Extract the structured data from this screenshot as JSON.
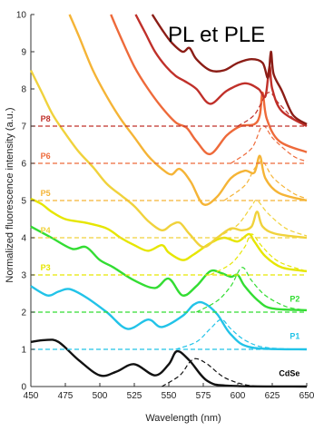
{
  "chart_data": {
    "type": "line",
    "title": "PL et PLE",
    "xlabel": "Wavelength (nm)",
    "ylabel": "Normalized fluorescence intensity (a.u.)",
    "xlim": [
      450,
      650
    ],
    "ylim": [
      0,
      10
    ],
    "xticks": [
      "450",
      "475",
      "500",
      "525",
      "550",
      "575",
      "600",
      "625",
      "650"
    ],
    "yticks": [
      "0",
      "1",
      "2",
      "3",
      "4",
      "5",
      "6",
      "7",
      "8",
      "9",
      "10"
    ],
    "grid": false,
    "legend": "none",
    "colors": {
      "CdSe": "#111111",
      "P1": "#22c3e8",
      "P2": "#33dd33",
      "P3": "#e6e600",
      "P4": "#f0d23c",
      "P5": "#f5b436",
      "P6": "#ee6a3a",
      "P8": "#c0302a",
      "P8dark": "#8b1d16"
    },
    "series": [
      {
        "name": "CdSe",
        "baseline": 0,
        "color": "#111111",
        "ple": [
          [
            450,
            1.2
          ],
          [
            460,
            1.25
          ],
          [
            470,
            1.2
          ],
          [
            485,
            0.7
          ],
          [
            500,
            0.3
          ],
          [
            512,
            0.4
          ],
          [
            525,
            0.6
          ],
          [
            540,
            0.3
          ],
          [
            550,
            0.6
          ],
          [
            556,
            0.95
          ],
          [
            565,
            0.7
          ],
          [
            578,
            0.15
          ],
          [
            595,
            0.02
          ],
          [
            650,
            0
          ]
        ],
        "pl": [
          [
            545,
            0
          ],
          [
            558,
            0.3
          ],
          [
            565,
            0.65
          ],
          [
            570,
            0.75
          ],
          [
            578,
            0.6
          ],
          [
            590,
            0.25
          ],
          [
            605,
            0.05
          ],
          [
            620,
            0
          ]
        ]
      },
      {
        "name": "P1",
        "baseline": 1,
        "color": "#22c3e8",
        "ple": [
          [
            450,
            2.7
          ],
          [
            462,
            2.45
          ],
          [
            470,
            2.55
          ],
          [
            478,
            2.62
          ],
          [
            490,
            2.4
          ],
          [
            505,
            2.0
          ],
          [
            520,
            1.55
          ],
          [
            535,
            1.8
          ],
          [
            545,
            1.6
          ],
          [
            560,
            1.9
          ],
          [
            568,
            2.2
          ],
          [
            575,
            2.25
          ],
          [
            585,
            1.95
          ],
          [
            595,
            1.4
          ],
          [
            610,
            1.05
          ],
          [
            650,
            1.0
          ]
        ],
        "pl": [
          [
            555,
            1.0
          ],
          [
            570,
            1.2
          ],
          [
            580,
            1.55
          ],
          [
            588,
            1.8
          ],
          [
            595,
            1.55
          ],
          [
            605,
            1.25
          ],
          [
            620,
            1.05
          ],
          [
            650,
            1.0
          ]
        ]
      },
      {
        "name": "P2",
        "baseline": 2,
        "color": "#33dd33",
        "ple": [
          [
            450,
            4.3
          ],
          [
            465,
            4.0
          ],
          [
            480,
            3.7
          ],
          [
            490,
            3.75
          ],
          [
            500,
            3.4
          ],
          [
            510,
            3.2
          ],
          [
            525,
            2.85
          ],
          [
            540,
            2.65
          ],
          [
            550,
            2.9
          ],
          [
            560,
            2.45
          ],
          [
            570,
            2.7
          ],
          [
            580,
            3.1
          ],
          [
            588,
            3.05
          ],
          [
            595,
            2.95
          ],
          [
            600,
            3.0
          ],
          [
            605,
            2.7
          ],
          [
            615,
            2.3
          ],
          [
            625,
            2.1
          ],
          [
            650,
            2.05
          ]
        ],
        "pl": [
          [
            570,
            2.0
          ],
          [
            585,
            2.3
          ],
          [
            595,
            2.7
          ],
          [
            603,
            3.2
          ],
          [
            610,
            2.85
          ],
          [
            620,
            2.45
          ],
          [
            635,
            2.15
          ],
          [
            650,
            2.05
          ]
        ]
      },
      {
        "name": "P3",
        "baseline": 3,
        "color": "#e6e600",
        "ple": [
          [
            450,
            5.05
          ],
          [
            458,
            4.9
          ],
          [
            465,
            4.7
          ],
          [
            475,
            4.5
          ],
          [
            490,
            4.4
          ],
          [
            505,
            4.25
          ],
          [
            515,
            4.0
          ],
          [
            525,
            3.8
          ],
          [
            535,
            3.65
          ],
          [
            545,
            3.8
          ],
          [
            550,
            3.6
          ],
          [
            560,
            3.4
          ],
          [
            568,
            3.55
          ],
          [
            580,
            3.85
          ],
          [
            590,
            4.0
          ],
          [
            600,
            3.9
          ],
          [
            608,
            4.1
          ],
          [
            612,
            3.9
          ],
          [
            620,
            3.5
          ],
          [
            632,
            3.2
          ],
          [
            650,
            3.1
          ]
        ],
        "pl": [
          [
            580,
            3.0
          ],
          [
            595,
            3.3
          ],
          [
            605,
            3.75
          ],
          [
            610,
            4.1
          ],
          [
            618,
            3.75
          ],
          [
            630,
            3.35
          ],
          [
            650,
            3.1
          ]
        ]
      },
      {
        "name": "P4",
        "baseline": 4,
        "color": "#f0d23c",
        "ple": [
          [
            450,
            8.5
          ],
          [
            458,
            7.9
          ],
          [
            466,
            7.3
          ],
          [
            475,
            6.8
          ],
          [
            485,
            6.3
          ],
          [
            495,
            5.9
          ],
          [
            505,
            5.45
          ],
          [
            515,
            5.15
          ],
          [
            525,
            4.85
          ],
          [
            535,
            4.45
          ],
          [
            545,
            4.2
          ],
          [
            552,
            4.35
          ],
          [
            558,
            4.4
          ],
          [
            565,
            4.1
          ],
          [
            575,
            3.75
          ],
          [
            585,
            4.0
          ],
          [
            595,
            4.25
          ],
          [
            603,
            4.2
          ],
          [
            610,
            4.3
          ],
          [
            614,
            4.7
          ],
          [
            618,
            4.3
          ],
          [
            628,
            4.1
          ],
          [
            650,
            4.0
          ]
        ],
        "pl": [
          [
            585,
            4.0
          ],
          [
            600,
            4.35
          ],
          [
            610,
            4.85
          ],
          [
            614,
            5.0
          ],
          [
            622,
            4.65
          ],
          [
            635,
            4.25
          ],
          [
            650,
            4.05
          ]
        ]
      },
      {
        "name": "P5",
        "baseline": 5,
        "color": "#f5b436",
        "ple": [
          [
            478,
            10
          ],
          [
            485,
            9.4
          ],
          [
            495,
            8.5
          ],
          [
            505,
            7.8
          ],
          [
            515,
            7.2
          ],
          [
            525,
            6.7
          ],
          [
            535,
            6.2
          ],
          [
            545,
            5.85
          ],
          [
            552,
            5.7
          ],
          [
            558,
            5.85
          ],
          [
            566,
            5.5
          ],
          [
            575,
            4.9
          ],
          [
            585,
            5.1
          ],
          [
            595,
            5.6
          ],
          [
            605,
            5.8
          ],
          [
            612,
            5.75
          ],
          [
            616,
            6.2
          ],
          [
            620,
            5.6
          ],
          [
            630,
            5.2
          ],
          [
            650,
            5.0
          ]
        ],
        "pl": [
          [
            590,
            5.0
          ],
          [
            605,
            5.4
          ],
          [
            612,
            5.85
          ],
          [
            618,
            6.05
          ],
          [
            626,
            5.6
          ],
          [
            640,
            5.2
          ],
          [
            650,
            5.05
          ]
        ]
      },
      {
        "name": "P6",
        "baseline": 6,
        "color": "#ee6a3a",
        "ple": [
          [
            508,
            10
          ],
          [
            515,
            9.4
          ],
          [
            525,
            8.6
          ],
          [
            535,
            8.0
          ],
          [
            545,
            7.5
          ],
          [
            555,
            7.1
          ],
          [
            563,
            6.95
          ],
          [
            570,
            6.6
          ],
          [
            580,
            6.25
          ],
          [
            592,
            6.75
          ],
          [
            602,
            7.0
          ],
          [
            612,
            7.05
          ],
          [
            616,
            7.3
          ],
          [
            618,
            7.9
          ],
          [
            621,
            7.2
          ],
          [
            630,
            6.6
          ],
          [
            650,
            6.3
          ]
        ],
        "pl": [
          [
            595,
            6.0
          ],
          [
            610,
            6.4
          ],
          [
            618,
            7.0
          ],
          [
            626,
            6.65
          ],
          [
            640,
            6.2
          ],
          [
            650,
            6.05
          ]
        ]
      },
      {
        "name": "P8",
        "baseline": 7,
        "color": "#c0302a",
        "ple": [
          [
            526,
            10
          ],
          [
            533,
            9.5
          ],
          [
            540,
            9.0
          ],
          [
            548,
            8.6
          ],
          [
            555,
            8.35
          ],
          [
            562,
            8.2
          ],
          [
            570,
            8.0
          ],
          [
            580,
            7.6
          ],
          [
            592,
            7.95
          ],
          [
            605,
            8.15
          ],
          [
            615,
            8.0
          ],
          [
            620,
            7.8
          ],
          [
            623,
            8.6
          ],
          [
            625,
            8.0
          ],
          [
            632,
            7.4
          ],
          [
            650,
            7.0
          ]
        ],
        "pl": [
          [
            600,
            7.0
          ],
          [
            612,
            7.3
          ],
          [
            622,
            7.9
          ],
          [
            630,
            7.6
          ],
          [
            642,
            7.15
          ],
          [
            650,
            7.05
          ]
        ]
      },
      {
        "name": "P8-top",
        "baseline": 7,
        "color": "#8b1d16",
        "ple": [
          [
            538,
            10
          ],
          [
            545,
            9.6
          ],
          [
            552,
            9.25
          ],
          [
            560,
            9.0
          ],
          [
            565,
            9.1
          ],
          [
            570,
            8.8
          ],
          [
            580,
            8.5
          ],
          [
            590,
            8.5
          ],
          [
            600,
            8.7
          ],
          [
            610,
            8.8
          ],
          [
            618,
            8.7
          ],
          [
            622,
            8.3
          ],
          [
            624,
            9.0
          ],
          [
            626,
            8.4
          ],
          [
            632,
            7.95
          ],
          [
            640,
            7.3
          ],
          [
            650,
            7.05
          ]
        ],
        "pl": []
      }
    ],
    "labels": [
      {
        "text": "P8",
        "series": "P8",
        "x": 457,
        "y": 7.12
      },
      {
        "text": "P6",
        "series": "P6",
        "x": 457,
        "y": 6.12
      },
      {
        "text": "P5",
        "series": "P5",
        "x": 457,
        "y": 5.12
      },
      {
        "text": "P4",
        "series": "P4",
        "x": 457,
        "y": 4.12
      },
      {
        "text": "P3",
        "series": "P3",
        "x": 457,
        "y": 3.12
      },
      {
        "text": "P2",
        "series": "P2",
        "x": 645,
        "y": 2.28
      },
      {
        "text": "P1",
        "series": "P1",
        "x": 645,
        "y": 1.28
      },
      {
        "text": "CdSe",
        "series": "CdSe",
        "x": 645,
        "y": 0.28
      }
    ]
  }
}
